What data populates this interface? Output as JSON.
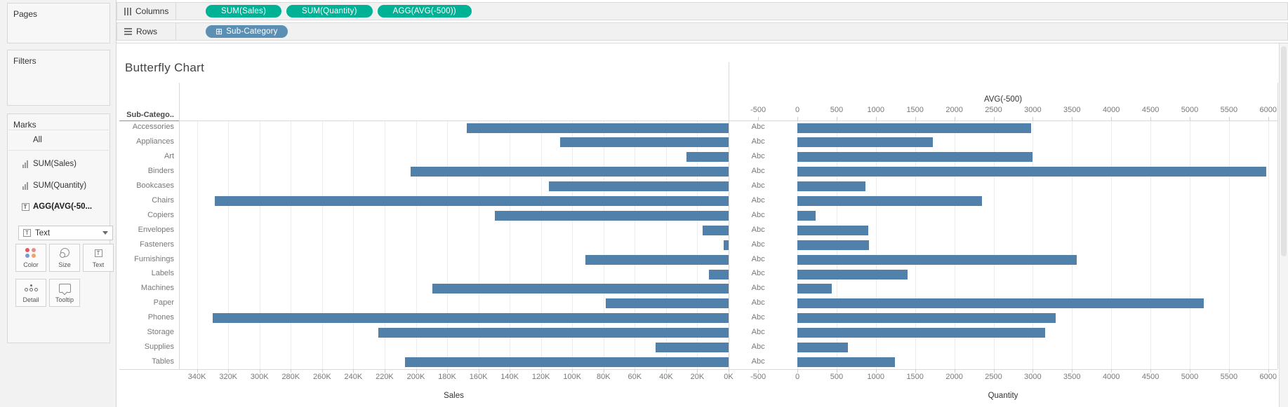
{
  "shelves": {
    "columns": {
      "label": "Columns",
      "pills": [
        "SUM(Sales)",
        "SUM(Quantity)",
        "AGG(AVG(-500))"
      ]
    },
    "rows": {
      "label": "Rows",
      "pills": [
        "Sub-Category"
      ]
    }
  },
  "sidebar": {
    "pages_label": "Pages",
    "filters_label": "Filters",
    "marks": {
      "label": "Marks",
      "items": [
        {
          "label": "All",
          "icon": "none"
        },
        {
          "label": "SUM(Sales)",
          "icon": "bar-chart-icon"
        },
        {
          "label": "SUM(Quantity)",
          "icon": "bar-chart-icon"
        },
        {
          "label": "AGG(AVG(-50...",
          "icon": "text-mark-icon"
        }
      ],
      "mark_type_dropdown": {
        "value": "Text"
      },
      "buttons": [
        {
          "label": "Color"
        },
        {
          "label": "Size"
        },
        {
          "label": "Text"
        },
        {
          "label": "Detail"
        },
        {
          "label": "Tooltip"
        }
      ]
    }
  },
  "chart_data": {
    "type": "bar",
    "variant": "butterfly",
    "title": "Butterfly Chart",
    "row_header": "Sub-Catego..",
    "categories": [
      "Accessories",
      "Appliances",
      "Art",
      "Binders",
      "Bookcases",
      "Chairs",
      "Copiers",
      "Envelopes",
      "Fasteners",
      "Furnishings",
      "Labels",
      "Machines",
      "Paper",
      "Phones",
      "Storage",
      "Supplies",
      "Tables"
    ],
    "series": [
      {
        "name": "SUM(Sales)",
        "side": "left",
        "axis_title": "Sales",
        "axis_reversed": true,
        "values": [
          167380,
          107532,
          27119,
          203413,
          114880,
          328449,
          149528,
          16476,
          3024,
          91705,
          12486,
          189239,
          78479,
          330007,
          223844,
          46674,
          206966
        ],
        "axis_ticks": [
          "340K",
          "320K",
          "300K",
          "280K",
          "260K",
          "240K",
          "220K",
          "200K",
          "180K",
          "160K",
          "140K",
          "120K",
          "100K",
          "80K",
          "60K",
          "40K",
          "20K",
          "0K"
        ],
        "axis_range": [
          0,
          351000
        ]
      },
      {
        "name": "SUM(Quantity)",
        "side": "right",
        "axis_title": "Quantity",
        "values": [
          2976,
          1729,
          3000,
          5974,
          868,
          2356,
          234,
          906,
          914,
          3563,
          1400,
          440,
          5178,
          3289,
          3158,
          647,
          1241
        ],
        "axis_ticks": [
          "-500",
          "0",
          "500",
          "1000",
          "1500",
          "2000",
          "2500",
          "3000",
          "3500",
          "4000",
          "4500",
          "5000",
          "5500",
          "6000"
        ],
        "axis_range": [
          -875,
          6120
        ]
      },
      {
        "name": "AGG(AVG(-500))",
        "side": "middle",
        "axis_title": "AVG(-500)",
        "axis_position": "top",
        "text_label": "Abc",
        "value": -500
      }
    ],
    "grid": true,
    "legend": "none"
  },
  "colors": {
    "bar": "#5181ab",
    "measure_pill": "#00b295",
    "dimension_pill": "#5b8fb4",
    "text_muted": "#787878"
  }
}
